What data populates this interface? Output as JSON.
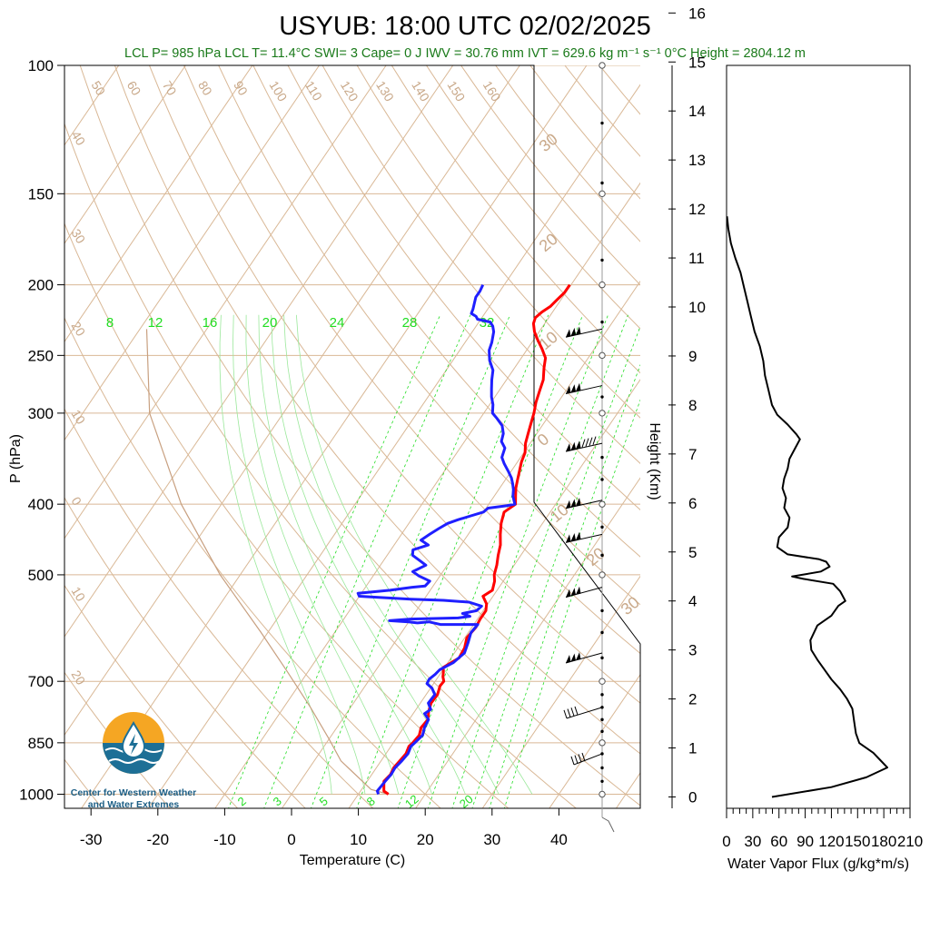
{
  "title": "USYUB: 18:00 UTC 02/02/2025",
  "info_line": "LCL P= 985 hPa  LCL T= 11.4°C  SWI= 3  Cape= 0 J  IWV = 30.76 mm  IVT = 629.6 kg m⁻¹ s⁻¹  0°C Height = 2804.12 m",
  "logo": {
    "line1": "Center for Western Weather",
    "line2": "and Water Extremes"
  },
  "colors": {
    "temperature": "#ff0000",
    "dewpoint": "#1f1fff",
    "isotherms_adiabats": "#d9b896",
    "mixing_ratio": "#22dd22",
    "info_text": "#1a7a1a",
    "logo_orange": "#f5a623",
    "logo_blue": "#1d6f96"
  },
  "chart_data": [
    {
      "type": "line",
      "subtype": "skew-T log-P",
      "title": "USYUB: 18:00 UTC 02/02/2025",
      "xlabel": "Temperature (C)",
      "ylabel": "P (hPa)",
      "xlim": [
        -34,
        52
      ],
      "ylim": [
        1050,
        100
      ],
      "y_scale": "log",
      "x_ticks": [
        -30,
        -20,
        -10,
        0,
        10,
        20,
        30,
        40
      ],
      "y_ticks": [
        100,
        150,
        200,
        250,
        300,
        400,
        500,
        700,
        850,
        1000
      ],
      "dry_adiabat_labels": [
        "50",
        "60",
        "70",
        "80",
        "90",
        "100",
        "110",
        "120",
        "130",
        "140",
        "150",
        "160",
        "40",
        "30",
        "20",
        "10",
        "0",
        "10",
        "20"
      ],
      "mixing_ratio_labels_top": [
        "8",
        "12",
        "16",
        "20",
        "24",
        "28",
        "32"
      ],
      "mixing_ratio_labels_bottom": [
        "2",
        "3",
        "5",
        "8",
        "12",
        "20"
      ],
      "isotherm_labels_right": [
        "30",
        "20",
        "10",
        "0",
        "10",
        "20",
        "30"
      ],
      "series": [
        {
          "name": "Temperature",
          "color": "#ff0000",
          "points": [
            [
              14.5,
              1000
            ],
            [
              13.5,
              990
            ],
            [
              13,
              975
            ],
            [
              12.5,
              960
            ],
            [
              12.8,
              940
            ],
            [
              12.6,
              920
            ],
            [
              12.8,
              900
            ],
            [
              13,
              880
            ],
            [
              12.7,
              860
            ],
            [
              12.9,
              850
            ],
            [
              13.1,
              830
            ],
            [
              12.6,
              810
            ],
            [
              12.8,
              790
            ],
            [
              12.1,
              770
            ],
            [
              11.6,
              750
            ],
            [
              11.7,
              730
            ],
            [
              11.2,
              710
            ],
            [
              11.3,
              700
            ],
            [
              10.7,
              690
            ],
            [
              10.3,
              680
            ],
            [
              9.8,
              670
            ],
            [
              11.2,
              650
            ],
            [
              11.0,
              630
            ],
            [
              10.3,
              610
            ],
            [
              10.6,
              590
            ],
            [
              10.4,
              575
            ],
            [
              10.4,
              560
            ],
            [
              9.8,
              548
            ],
            [
              8.5,
              535
            ],
            [
              9.3,
              525
            ],
            [
              8.7,
              510
            ],
            [
              8.0,
              500
            ],
            [
              7.4,
              485
            ],
            [
              6.6,
              470
            ],
            [
              5.9,
              455
            ],
            [
              4.8,
              440
            ],
            [
              3.8,
              425
            ],
            [
              3.1,
              410
            ],
            [
              4.0,
              400
            ],
            [
              3.2,
              390
            ],
            [
              2.4,
              380
            ],
            [
              1.8,
              370
            ],
            [
              1.2,
              360
            ],
            [
              0.6,
              350
            ],
            [
              0.2,
              340
            ],
            [
              -0.7,
              330
            ],
            [
              -1.3,
              320
            ],
            [
              -1.9,
              310
            ],
            [
              -2.5,
              300
            ],
            [
              -3.3,
              290
            ],
            [
              -3.9,
              280
            ],
            [
              -4.5,
              270
            ],
            [
              -5.6,
              260
            ],
            [
              -6.4,
              252
            ],
            [
              -7.8,
              245
            ],
            [
              -9.4,
              238
            ],
            [
              -10.7,
              232
            ],
            [
              -11.7,
              226
            ],
            [
              -12.0,
              222
            ],
            [
              -11.6,
              218
            ],
            [
              -10.9,
              214
            ],
            [
              -10.6,
              210
            ],
            [
              -10.2,
              205
            ],
            [
              -10.2,
              200
            ]
          ]
        },
        {
          "name": "Dew Point",
          "color": "#1f1fff",
          "points": [
            [
              13,
              1000
            ],
            [
              12.5,
              990
            ],
            [
              12.6,
              975
            ],
            [
              12.7,
              960
            ],
            [
              12.9,
              940
            ],
            [
              12.8,
              920
            ],
            [
              13.1,
              900
            ],
            [
              13.3,
              880
            ],
            [
              13.0,
              860
            ],
            [
              13.2,
              850
            ],
            [
              13.6,
              830
            ],
            [
              13.1,
              810
            ],
            [
              12.9,
              790
            ],
            [
              11.7,
              775
            ],
            [
              12.2,
              765
            ],
            [
              11.2,
              750
            ],
            [
              11.3,
              730
            ],
            [
              10.2,
              715
            ],
            [
              9.0,
              705
            ],
            [
              8.9,
              695
            ],
            [
              9.3,
              685
            ],
            [
              9.5,
              675
            ],
            [
              10.8,
              660
            ],
            [
              11.5,
              640
            ],
            [
              11.0,
              620
            ],
            [
              10.4,
              600
            ],
            [
              10.6,
              585
            ],
            [
              5.0,
              585
            ],
            [
              3.0,
              580
            ],
            [
              1.4,
              582
            ],
            [
              0.0,
              580
            ],
            [
              -3.0,
              578
            ],
            [
              0.0,
              575
            ],
            [
              7.0,
              573
            ],
            [
              8.6,
              570
            ],
            [
              7.2,
              565
            ],
            [
              9.0,
              560
            ],
            [
              9.3,
              552
            ],
            [
              7.0,
              545
            ],
            [
              3.0,
              542
            ],
            [
              -2.0,
              540
            ],
            [
              -7.0,
              537
            ],
            [
              -10.0,
              535
            ],
            [
              -10.5,
              530
            ],
            [
              -6.0,
              525
            ],
            [
              -3.0,
              520
            ],
            [
              -1.2,
              518
            ],
            [
              -1.0,
              510
            ],
            [
              -3.1,
              502
            ],
            [
              -4.5,
              495
            ],
            [
              -3.2,
              485
            ],
            [
              -4.6,
              478
            ],
            [
              -6.2,
              470
            ],
            [
              -6.7,
              462
            ],
            [
              -4.9,
              455
            ],
            [
              -6.5,
              448
            ],
            [
              -5.8,
              440
            ],
            [
              -5.0,
              432
            ],
            [
              -4.2,
              425
            ],
            [
              -3.0,
              420
            ],
            [
              -1.5,
              415
            ],
            [
              0.0,
              410
            ],
            [
              0.3,
              405
            ],
            [
              2.8,
              402
            ],
            [
              3.9,
              400
            ],
            [
              2.8,
              390
            ],
            [
              2.2,
              382
            ],
            [
              1.5,
              375
            ],
            [
              0.7,
              368
            ],
            [
              -0.5,
              360
            ],
            [
              -1.8,
              352
            ],
            [
              -2.8,
              345
            ],
            [
              -3.3,
              335
            ],
            [
              -4.5,
              328
            ],
            [
              -5.0,
              320
            ],
            [
              -6.0,
              312
            ],
            [
              -7.5,
              305
            ],
            [
              -8.7,
              300
            ],
            [
              -9.5,
              292
            ],
            [
              -10.5,
              285
            ],
            [
              -11.3,
              278
            ],
            [
              -12.2,
              270
            ],
            [
              -13.0,
              262
            ],
            [
              -14.5,
              254
            ],
            [
              -15.6,
              246
            ],
            [
              -16.0,
              240
            ],
            [
              -16.8,
              232
            ],
            [
              -17.5,
              228
            ],
            [
              -18.3,
              225
            ],
            [
              -20.5,
              223
            ],
            [
              -21.0,
              221
            ],
            [
              -22.0,
              219
            ],
            [
              -22.2,
              216
            ],
            [
              -22.6,
              212
            ],
            [
              -23.0,
              208
            ],
            [
              -23.0,
              204
            ],
            [
              -23.2,
              200
            ]
          ]
        }
      ]
    },
    {
      "type": "line",
      "title": "",
      "xlabel": "Water Vapor Flux (g/kg*m/s)",
      "ylabel": "Height (Km)",
      "xlim": [
        0,
        210
      ],
      "ylim": [
        -0.3,
        16.6
      ],
      "x_ticks": [
        0,
        30,
        60,
        90,
        120,
        150,
        180,
        210
      ],
      "y_ticks": [
        0,
        1,
        2,
        3,
        4,
        5,
        6,
        7,
        8,
        9,
        10,
        11,
        12,
        13,
        14,
        15,
        16
      ],
      "series": [
        {
          "name": "Water Vapor Flux",
          "color": "#000000",
          "points": [
            [
              52,
              0.0
            ],
            [
              120,
              0.2
            ],
            [
              160,
              0.4
            ],
            [
              184,
              0.6
            ],
            [
              176,
              0.75
            ],
            [
              168,
              0.9
            ],
            [
              152,
              1.1
            ],
            [
              148,
              1.3
            ],
            [
              146,
              1.55
            ],
            [
              144,
              1.8
            ],
            [
              138,
              2.0
            ],
            [
              130,
              2.2
            ],
            [
              120,
              2.4
            ],
            [
              112,
              2.6
            ],
            [
              104,
              2.8
            ],
            [
              97,
              3.0
            ],
            [
              96,
              3.2
            ],
            [
              104,
              3.5
            ],
            [
              120,
              3.7
            ],
            [
              128,
              3.9
            ],
            [
              136,
              4.0
            ],
            [
              130,
              4.2
            ],
            [
              122,
              4.35
            ],
            [
              88,
              4.45
            ],
            [
              75,
              4.5
            ],
            [
              92,
              4.55
            ],
            [
              108,
              4.6
            ],
            [
              118,
              4.7
            ],
            [
              114,
              4.8
            ],
            [
              106,
              4.85
            ],
            [
              70,
              4.95
            ],
            [
              58,
              5.1
            ],
            [
              60,
              5.3
            ],
            [
              70,
              5.5
            ],
            [
              72,
              5.7
            ],
            [
              66,
              5.9
            ],
            [
              68,
              6.1
            ],
            [
              64,
              6.3
            ],
            [
              66,
              6.5
            ],
            [
              70,
              6.7
            ],
            [
              72,
              6.9
            ],
            [
              78,
              7.1
            ],
            [
              84,
              7.3
            ],
            [
              80,
              7.4
            ],
            [
              70,
              7.6
            ],
            [
              58,
              7.8
            ],
            [
              52,
              8.0
            ],
            [
              48,
              8.3
            ],
            [
              44,
              8.6
            ],
            [
              42,
              8.9
            ],
            [
              38,
              9.2
            ],
            [
              32,
              9.5
            ],
            [
              28,
              9.8
            ],
            [
              24,
              10.1
            ],
            [
              20,
              10.4
            ],
            [
              16,
              10.7
            ],
            [
              10,
              11.0
            ],
            [
              5,
              11.3
            ],
            [
              2,
              11.6
            ],
            [
              0.5,
              11.85
            ]
          ]
        }
      ]
    }
  ]
}
